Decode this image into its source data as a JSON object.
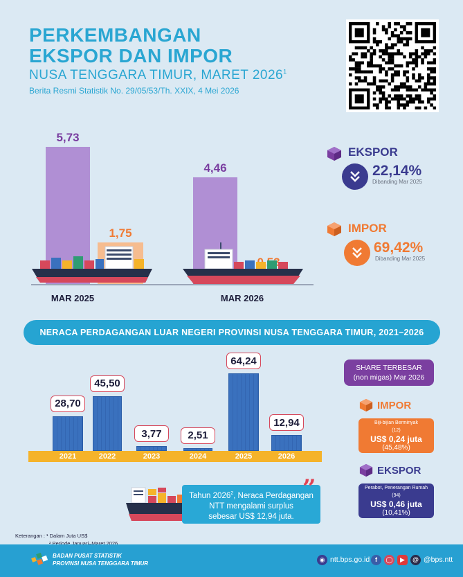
{
  "header": {
    "title_line1": "PERKEMBANGAN",
    "title_line2": "EKSPOR DAN IMPOR",
    "subtitle": "NUSA TENGGARA TIMUR, MARET 2026",
    "subtitle_sup": "1",
    "brs": "Berita Resmi Statistik No. 29/05/53/Th. XXIX, 4 Mei 2026"
  },
  "monthly_compare": {
    "periods": [
      {
        "label": "MAR 2025",
        "ekspor": 5.73,
        "impor": 1.75,
        "ekspor_text": "5,73",
        "impor_text": "1,75"
      },
      {
        "label": "MAR 2026",
        "ekspor": 4.46,
        "impor": 0.53,
        "ekspor_text": "4,46",
        "impor_text": "0,53"
      }
    ],
    "colors": {
      "ekspor": "#b08fd4",
      "impor": "#f6bc8f",
      "ekspor_label": "#7a3ea0",
      "impor_label": "#f07a33"
    }
  },
  "stats": {
    "ekspor": {
      "title": "EKSPOR",
      "pct": "22,14%",
      "cmp": "Dibanding Mar 2025",
      "color": "#3a3b8f"
    },
    "impor": {
      "title": "IMPOR",
      "pct": "69,42%",
      "cmp": "Dibanding Mar 2025",
      "color": "#f07a33"
    }
  },
  "banner": "NERACA PERDAGANGAN LUAR NEGERI PROVINSI NUSA TENGGARA TIMUR, 2021–2026",
  "chart_data": {
    "type": "bar",
    "categories": [
      "2021",
      "2022",
      "2023",
      "2024",
      "2025",
      "2026"
    ],
    "values": [
      28.7,
      45.5,
      3.77,
      2.51,
      64.24,
      12.94
    ],
    "value_labels": [
      "28,70",
      "45,50",
      "3,77",
      "2,51",
      "64,24",
      "12,94"
    ],
    "title": "",
    "xlabel": "",
    "ylabel": "",
    "ylim": [
      0,
      70
    ]
  },
  "share": {
    "title_line1": "SHARE TERBESAR",
    "title_line2": "(non migas) Mar 2026",
    "impor": {
      "title": "IMPOR",
      "category": "Biji-bijian Berminyak",
      "code": "(12)",
      "value": "US$ 0,24 juta",
      "share": "(45,48%)"
    },
    "ekspor": {
      "title": "EKSPOR",
      "category": "Perabot, Penerangan Rumah",
      "code": "(94)",
      "value": "US$ 0,46 juta",
      "share": "(10,41%)"
    }
  },
  "surplus_note": {
    "line1_a": "Tahun 2026",
    "line1_sup": "2",
    "line1_b": ", Neraca Perdagangan",
    "line2": "NTT mengalami surplus",
    "line3": "sebesar US$ 12,94 juta."
  },
  "notes": {
    "label": "Keterangan :",
    "n1": "¹ Dalam Juta US$",
    "n2": "² Periode Januari–Maret 2026"
  },
  "footer": {
    "org_line1": "BADAN PUSAT STATISTIK",
    "org_line2": "PROVINSI NUSA TENGGARA TIMUR",
    "website": "ntt.bps.go.id",
    "social_handle": "@bps.ntt"
  }
}
